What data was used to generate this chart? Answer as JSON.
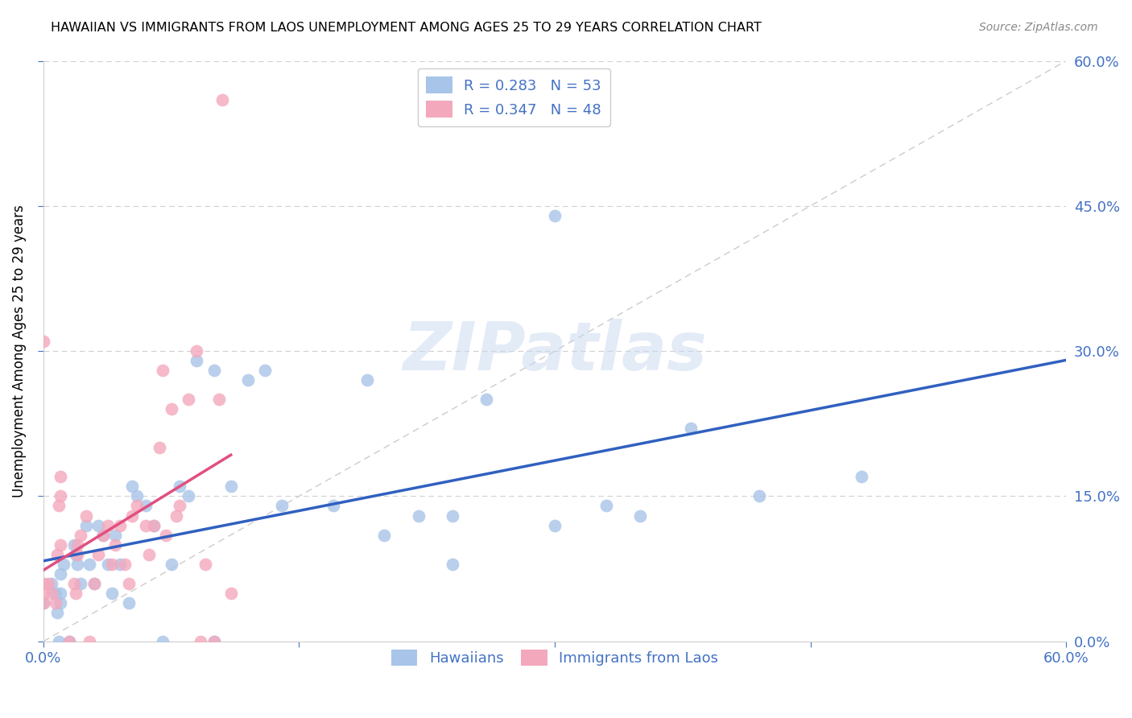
{
  "title": "HAWAIIAN VS IMMIGRANTS FROM LAOS UNEMPLOYMENT AMONG AGES 25 TO 29 YEARS CORRELATION CHART",
  "source": "Source: ZipAtlas.com",
  "ylabel_label": "Unemployment Among Ages 25 to 29 years",
  "xlim": [
    0.0,
    0.6
  ],
  "ylim": [
    0.0,
    0.6
  ],
  "watermark": "ZIPatlas",
  "legend_r_hawaiians": "R = 0.283",
  "legend_n_hawaiians": "N = 53",
  "legend_r_laos": "R = 0.347",
  "legend_n_laos": "N = 48",
  "hawaiian_color": "#a8c4e8",
  "laos_color": "#f4a8bc",
  "hawaiian_line_color": "#3060c0",
  "laos_line_color": "#e05080",
  "diagonal_color": "#cccccc",
  "tick_color": "#4472c4",
  "grid_color": "#d0d0d0",
  "hawaiians_x": [
    0.0,
    0.005,
    0.007,
    0.008,
    0.009,
    0.01,
    0.01,
    0.01,
    0.012,
    0.015,
    0.018,
    0.019,
    0.02,
    0.022,
    0.025,
    0.027,
    0.03,
    0.032,
    0.035,
    0.038,
    0.04,
    0.042,
    0.045,
    0.05,
    0.052,
    0.055,
    0.06,
    0.065,
    0.07,
    0.075,
    0.08,
    0.085,
    0.09,
    0.1,
    0.1,
    0.11,
    0.12,
    0.13,
    0.14,
    0.17,
    0.19,
    0.2,
    0.22,
    0.24,
    0.24,
    0.26,
    0.3,
    0.3,
    0.33,
    0.35,
    0.38,
    0.42,
    0.48
  ],
  "hawaiians_y": [
    0.04,
    0.06,
    0.05,
    0.03,
    0.0,
    0.07,
    0.05,
    0.04,
    0.08,
    0.0,
    0.1,
    0.09,
    0.08,
    0.06,
    0.12,
    0.08,
    0.06,
    0.12,
    0.11,
    0.08,
    0.05,
    0.11,
    0.08,
    0.04,
    0.16,
    0.15,
    0.14,
    0.12,
    0.0,
    0.08,
    0.16,
    0.15,
    0.29,
    0.28,
    0.0,
    0.16,
    0.27,
    0.28,
    0.14,
    0.14,
    0.27,
    0.11,
    0.13,
    0.13,
    0.08,
    0.25,
    0.12,
    0.44,
    0.14,
    0.13,
    0.22,
    0.15,
    0.17
  ],
  "laos_x": [
    0.0,
    0.0,
    0.0,
    0.003,
    0.005,
    0.007,
    0.008,
    0.009,
    0.01,
    0.01,
    0.01,
    0.015,
    0.018,
    0.019,
    0.02,
    0.02,
    0.022,
    0.025,
    0.027,
    0.03,
    0.032,
    0.035,
    0.038,
    0.04,
    0.042,
    0.045,
    0.048,
    0.05,
    0.052,
    0.055,
    0.06,
    0.062,
    0.065,
    0.068,
    0.07,
    0.072,
    0.075,
    0.078,
    0.08,
    0.085,
    0.09,
    0.092,
    0.095,
    0.1,
    0.103,
    0.105,
    0.11,
    0.0
  ],
  "laos_y": [
    0.04,
    0.05,
    0.06,
    0.06,
    0.05,
    0.04,
    0.09,
    0.14,
    0.17,
    0.15,
    0.1,
    0.0,
    0.06,
    0.05,
    0.1,
    0.09,
    0.11,
    0.13,
    0.0,
    0.06,
    0.09,
    0.11,
    0.12,
    0.08,
    0.1,
    0.12,
    0.08,
    0.06,
    0.13,
    0.14,
    0.12,
    0.09,
    0.12,
    0.2,
    0.28,
    0.11,
    0.24,
    0.13,
    0.14,
    0.25,
    0.3,
    0.0,
    0.08,
    0.0,
    0.25,
    0.56,
    0.05,
    0.31
  ]
}
